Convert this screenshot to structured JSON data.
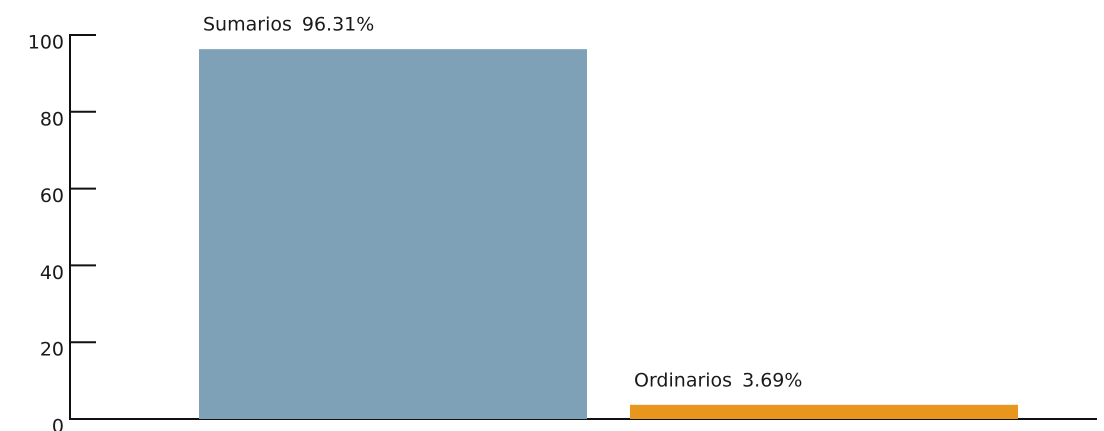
{
  "chart_data": {
    "type": "bar",
    "categories": [
      "Sumarios",
      "Ordinarios"
    ],
    "values": [
      96.31,
      3.69
    ],
    "value_labels": [
      "96.31%",
      "3.69%"
    ],
    "colors": [
      "#7fa1b8",
      "#e8961e"
    ],
    "ylim": [
      0,
      100
    ],
    "yticks": [
      0,
      20,
      40,
      60,
      80,
      100
    ]
  }
}
